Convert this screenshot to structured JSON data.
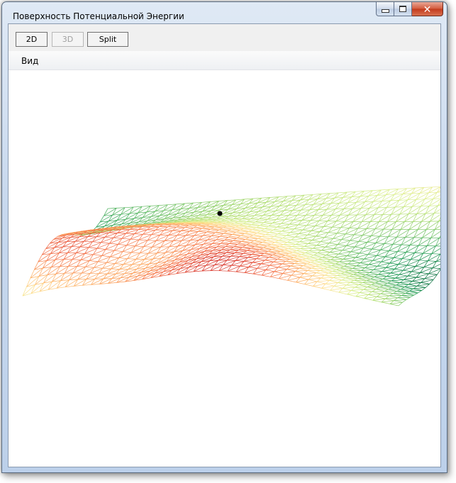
{
  "window": {
    "title": "Поверхность Потенциальной Энергии"
  },
  "toolbar": {
    "buttons": [
      {
        "label": "2D",
        "enabled": true
      },
      {
        "label": "3D",
        "enabled": false
      },
      {
        "label": "Split",
        "enabled": true
      }
    ]
  },
  "menu": {
    "items": [
      {
        "label": "Вид"
      }
    ]
  },
  "view": {
    "colormap": [
      "#006837",
      "#1a9850",
      "#66bd63",
      "#a6d96a",
      "#d9ef8b",
      "#fee08b",
      "#fdae61",
      "#f46d43",
      "#d73027"
    ],
    "marker_color": "#000000"
  },
  "icons": {
    "minimize": "minimize-icon",
    "maximize": "maximize-icon",
    "close": "close-icon"
  }
}
